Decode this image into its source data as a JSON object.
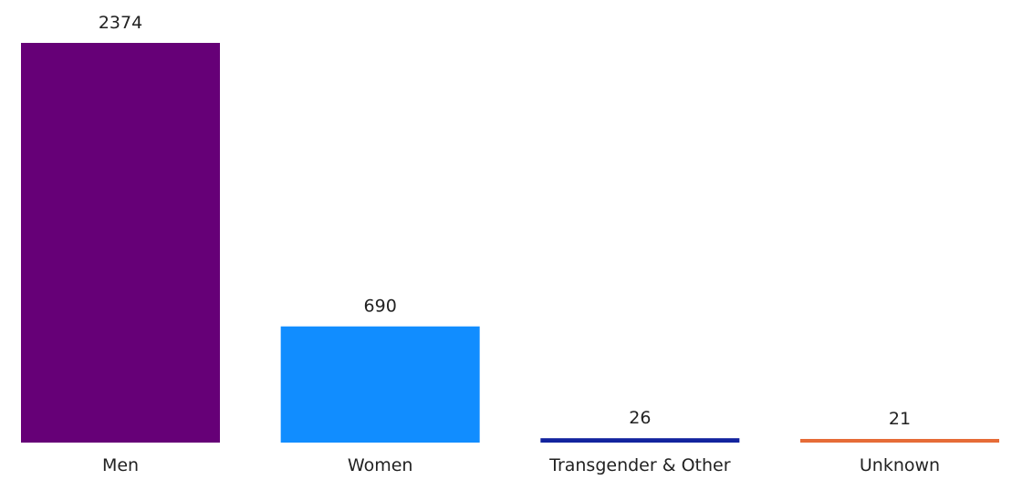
{
  "chart_data": {
    "type": "bar",
    "categories": [
      "Men",
      "Women",
      "Transgender & Other",
      "Unknown"
    ],
    "values": [
      2374,
      690,
      26,
      21
    ],
    "colors": [
      "#660077",
      "#118dff",
      "#12239e",
      "#e66c37"
    ],
    "title": "",
    "xlabel": "",
    "ylabel": "",
    "ylim": [
      0,
      2374
    ],
    "grid": false,
    "legend": "none",
    "data_labels": true
  }
}
